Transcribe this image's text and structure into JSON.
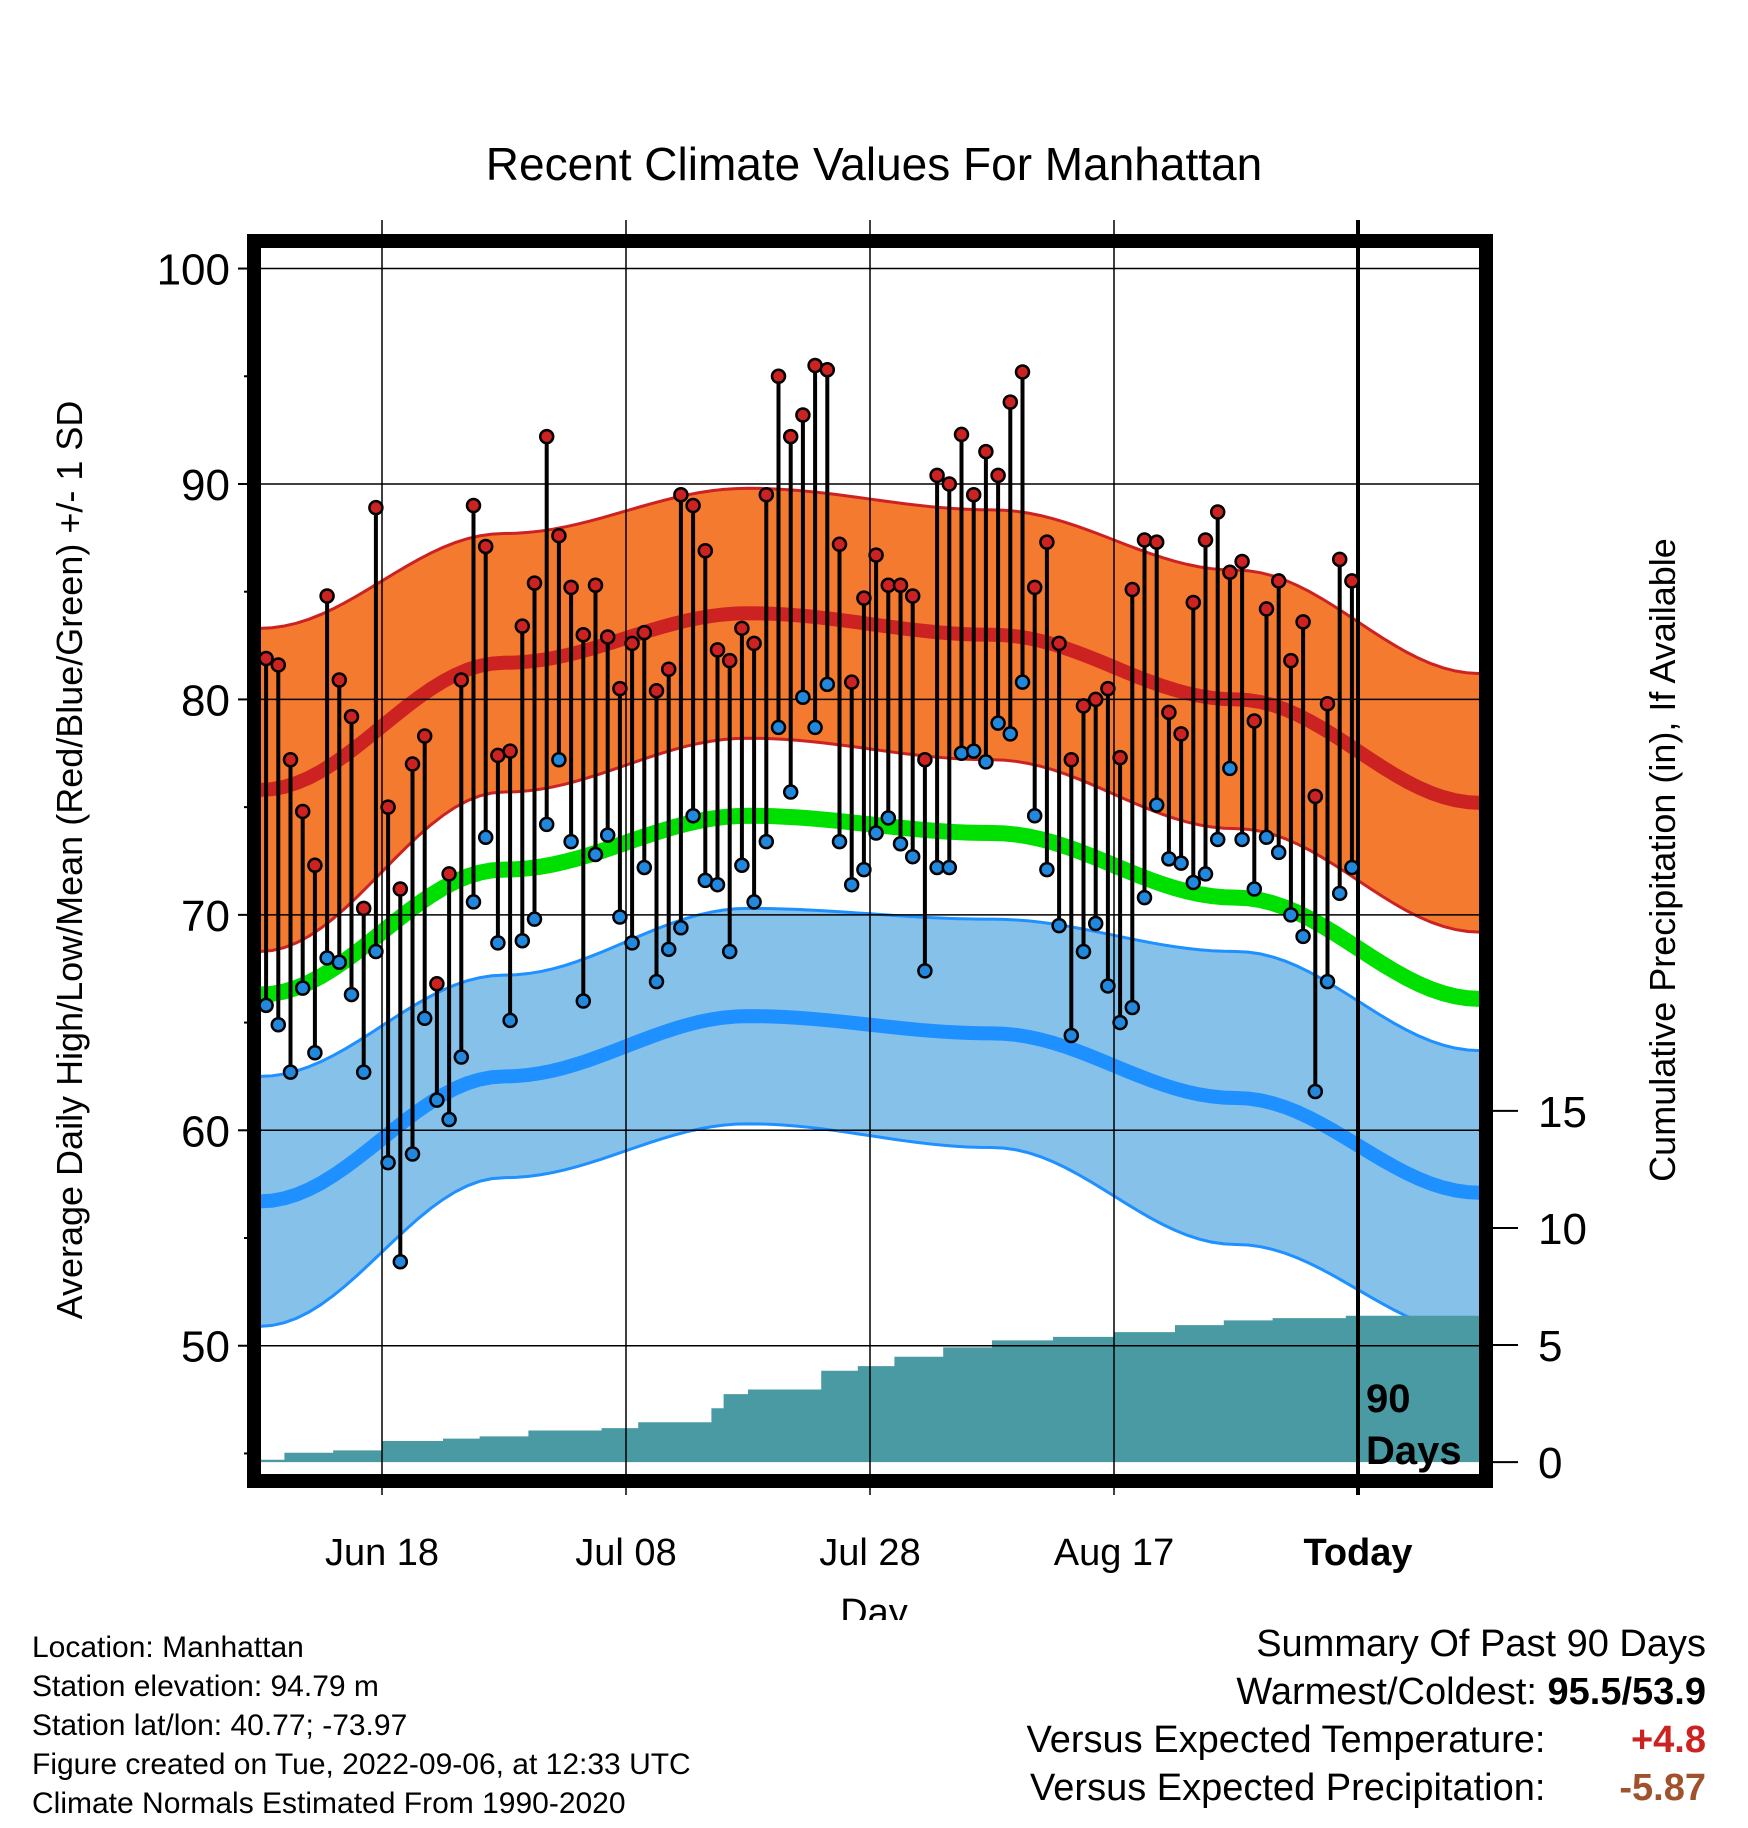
{
  "chart_data": {
    "type": "line",
    "title": "Recent Climate Values For Manhattan",
    "xlabel": "Day",
    "ylabel": "Average Daily High/Low/Mean (Red/Blue/Green) +/- 1 SD",
    "y2label": "Cumulative Precipitation (in), If Available",
    "ylim": [
      44,
      101
    ],
    "y2lim": [
      0,
      15
    ],
    "yticks": [
      50,
      60,
      70,
      80,
      90,
      100
    ],
    "y2ticks": [
      0,
      5,
      10,
      15
    ],
    "x_ticks": [
      {
        "label": "Jun 18",
        "day": 10
      },
      {
        "label": "Jul 08",
        "day": 30
      },
      {
        "label": "Jul 28",
        "day": 50
      },
      {
        "label": "Aug 17",
        "day": 70
      },
      {
        "label": "Today",
        "day": 90
      }
    ],
    "x_range_days": [
      0,
      100
    ],
    "today_marker": "90\nDays",
    "today_marker_lines": [
      "90",
      "Days"
    ],
    "normals": {
      "high_mean": {
        "days": [
          0,
          20,
          40,
          60,
          80,
          100
        ],
        "values": [
          75.8,
          81.7,
          84.0,
          83.0,
          80.0,
          75.2
        ]
      },
      "high_sd": {
        "days": [
          0,
          20,
          40,
          60,
          80,
          100
        ],
        "values": [
          7.5,
          6.0,
          5.8,
          5.8,
          6.0,
          6.0
        ]
      },
      "low_mean": {
        "days": [
          0,
          20,
          40,
          60,
          80,
          100
        ],
        "values": [
          56.7,
          62.5,
          65.3,
          64.5,
          61.5,
          57.1
        ]
      },
      "low_sd": {
        "days": [
          0,
          20,
          40,
          60,
          80,
          100
        ],
        "values": [
          5.8,
          4.7,
          5.0,
          5.3,
          6.8,
          6.6
        ]
      },
      "mean": {
        "days": [
          0,
          20,
          40,
          60,
          80,
          100
        ],
        "values": [
          66.3,
          72.1,
          74.6,
          73.8,
          70.8,
          66.1
        ]
      }
    },
    "series": [
      {
        "name": "High",
        "color": "#cc2222",
        "values": [
          81.9,
          81.6,
          77.2,
          74.8,
          72.3,
          84.8,
          80.9,
          79.2,
          70.3,
          88.9,
          75.0,
          71.2,
          77.0,
          78.3,
          66.8,
          71.9,
          80.9,
          89.0,
          87.1,
          77.4,
          77.6,
          83.4,
          85.4,
          92.2,
          87.6,
          85.2,
          83.0,
          85.3,
          82.9,
          80.5,
          82.6,
          83.1,
          80.4,
          81.4,
          89.5,
          89.0,
          86.9,
          82.3,
          81.8,
          83.3,
          82.6,
          89.5,
          95.0,
          92.2,
          93.2,
          95.5,
          95.3,
          87.2,
          80.8,
          84.7,
          86.7,
          85.3,
          85.3,
          84.8,
          77.2,
          90.4,
          90.0,
          92.3,
          89.5,
          91.5,
          90.4,
          93.8,
          95.2,
          85.2,
          87.3,
          82.6,
          77.2,
          79.7,
          80.0,
          80.5,
          77.3,
          85.1,
          87.4,
          87.3,
          79.4,
          78.4,
          84.5,
          87.4,
          88.7,
          85.9,
          86.4,
          79.0,
          84.2,
          85.5,
          81.8,
          83.6,
          75.5,
          79.8,
          86.5,
          85.5
        ]
      },
      {
        "name": "Low",
        "color": "#2288dd",
        "values": [
          65.8,
          64.9,
          62.7,
          66.6,
          63.6,
          68.0,
          67.8,
          66.3,
          62.7,
          68.3,
          58.5,
          53.9,
          58.9,
          65.2,
          61.4,
          60.5,
          63.4,
          70.6,
          73.6,
          68.7,
          65.1,
          68.8,
          69.8,
          74.2,
          77.2,
          73.4,
          66.0,
          72.8,
          73.7,
          69.9,
          68.7,
          72.2,
          66.9,
          68.4,
          69.4,
          74.6,
          71.6,
          71.4,
          68.3,
          72.3,
          70.6,
          73.4,
          78.7,
          75.7,
          80.1,
          78.7,
          80.7,
          73.4,
          71.4,
          72.1,
          73.8,
          74.5,
          73.3,
          72.7,
          67.4,
          72.2,
          72.2,
          77.5,
          77.6,
          77.1,
          78.9,
          78.4,
          80.8,
          74.6,
          72.1,
          69.5,
          64.4,
          68.3,
          69.6,
          66.7,
          65.0,
          65.7,
          70.8,
          75.1,
          72.6,
          72.4,
          71.5,
          71.9,
          73.5,
          76.8,
          73.5,
          71.2,
          73.6,
          72.9,
          70.0,
          69.0,
          61.8,
          66.9,
          71.0,
          72.2
        ]
      }
    ],
    "precipitation": {
      "color": "#4a9aa3",
      "days": [
        0,
        2,
        6,
        10,
        15,
        18,
        22,
        28,
        31,
        37,
        38,
        40,
        46,
        49,
        52,
        56,
        60,
        65,
        70,
        75,
        79,
        83,
        89,
        100
      ],
      "values": [
        0.1,
        0.4,
        0.5,
        0.9,
        1.0,
        1.1,
        1.35,
        1.45,
        1.7,
        2.3,
        2.9,
        3.1,
        3.9,
        4.1,
        4.5,
        4.9,
        5.2,
        5.35,
        5.55,
        5.85,
        6.05,
        6.15,
        6.25,
        6.3
      ]
    },
    "grid": true,
    "legend": "none"
  },
  "footer": {
    "location": "Location: Manhattan",
    "elevation": "Station elevation: 94.79 m",
    "latlon": "Station lat/lon: 40.77; -73.97",
    "created": "Figure created on Tue, 2022-09-06, at 12:33 UTC",
    "normals": "Climate Normals Estimated From 1990-2020"
  },
  "summary": {
    "title": "Summary Of Past 90 Days",
    "rows": [
      {
        "label": "Warmest/Coldest:",
        "value": "95.5/53.9",
        "color": "#000000"
      },
      {
        "label": "Versus Expected Temperature:",
        "value": "+4.8",
        "color": "#cc2222"
      },
      {
        "label": "Versus Expected Precipitation:",
        "value": "-5.87",
        "color": "#a0522d"
      }
    ]
  },
  "colors": {
    "high_band": "#f47a30",
    "high_line": "#cc2222",
    "low_band": "#85c1e9",
    "low_line": "#1e90ff",
    "mean_line": "#00e000",
    "precip": "#4a9aa3"
  }
}
